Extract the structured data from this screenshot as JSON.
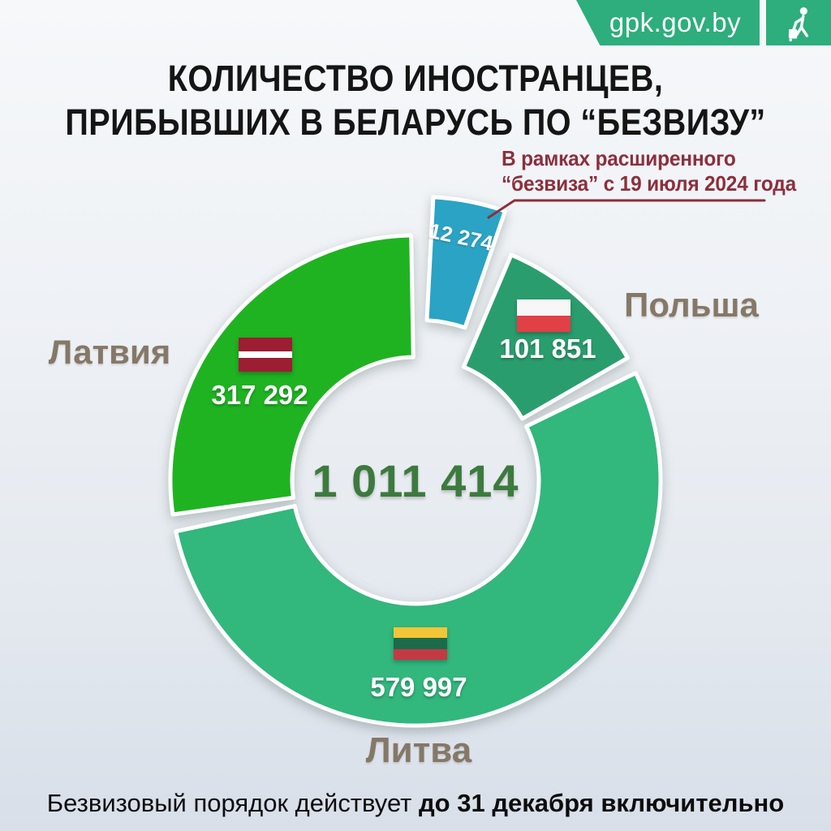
{
  "badge": {
    "site": "gpk.gov.by",
    "icon": "traveler-with-suitcase",
    "color": "#2dae7c"
  },
  "title": {
    "line1": "КОЛИЧЕСТВО ИНОСТРАНЦЕВ,",
    "line2": "ПРИБЫВШИХ В БЕЛАРУСЬ ПО “БЕЗВИЗУ”"
  },
  "annotation": {
    "line1": "В рамках расширенного",
    "line2": "“безвиза” с 19 июля 2024 года",
    "color": "#8c2f3c"
  },
  "footer": {
    "normal": "Безвизовый порядок действует ",
    "bold": "до 31 декабря включительно"
  },
  "chart_data": {
    "type": "pie",
    "subtype": "donut",
    "title": "Количество иностранцев, прибывших в Беларусь по безвизу",
    "total_value": 1011414,
    "total_label": "1 011 414",
    "legend_position": "around",
    "slices": [
      {
        "id": "latvia",
        "name": "Латвия",
        "value": 317292,
        "value_label": "317 292",
        "color": "#1fb322",
        "start_deg": 262,
        "end_deg": 359,
        "flag_stripes": [
          {
            "c": "#9d1d33",
            "w": 2
          },
          {
            "c": "#ffffff",
            "w": 1
          },
          {
            "c": "#9d1d33",
            "w": 2
          }
        ]
      },
      {
        "id": "poland",
        "name": "Польша",
        "value": 101851,
        "value_label": "101 851",
        "color": "#2a9d6e",
        "start_deg": 23,
        "end_deg": 60,
        "flag_stripes": [
          {
            "c": "#f7f7f7",
            "w": 1
          },
          {
            "c": "#e04046",
            "w": 1
          }
        ]
      },
      {
        "id": "lithuania",
        "name": "Литва",
        "value": 579997,
        "value_label": "579 997",
        "color": "#32b77d",
        "start_deg": 64,
        "end_deg": 258,
        "flag_stripes": [
          {
            "c": "#f2c537",
            "w": 1
          },
          {
            "c": "#1b6b4a",
            "w": 1
          },
          {
            "c": "#c43a44",
            "w": 1
          }
        ]
      },
      {
        "id": "expanded-bezviz",
        "name": "",
        "value": 12274,
        "value_label": "12 274",
        "color": "#2aa3c4",
        "start_deg": 3,
        "end_deg": 19,
        "explode": 26,
        "note": "В рамках расширенного “безвиза” с 19 июля 2024 года"
      }
    ]
  }
}
